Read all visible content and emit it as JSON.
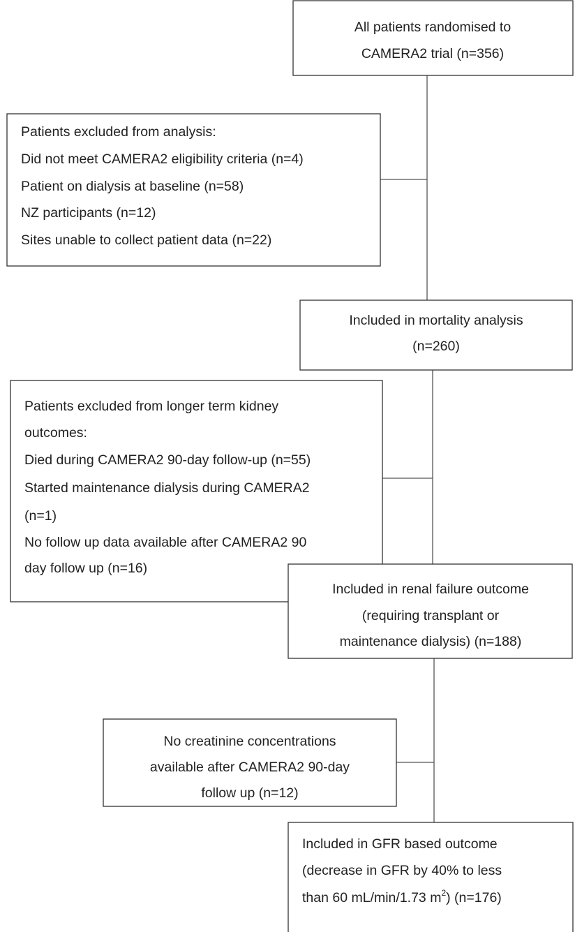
{
  "boxes": [
    {
      "lines": [
        "All patients randomised to",
        "CAMERA2 trial (n=356)"
      ]
    },
    {
      "lines": [
        "Patients excluded from analysis:",
        "Did not meet CAMERA2 eligibility criteria (n=4)",
        "Patient on dialysis at baseline (n=58)",
        "NZ participants (n=12)",
        "Sites unable to collect patient data (n=22)"
      ]
    },
    {
      "lines": [
        "Included in mortality analysis",
        "(n=260)"
      ]
    },
    {
      "lines": [
        "Patients excluded from longer term kidney",
        "outcomes:",
        "Died during CAMERA2 90-day follow-up (n=55)",
        "Started maintenance dialysis during CAMERA2",
        "(n=1)",
        "No follow up data available after CAMERA2 90",
        "day follow up (n=16)"
      ]
    },
    {
      "lines": [
        "Included in renal failure outcome",
        "(requiring transplant or",
        "maintenance dialysis) (n=188)"
      ]
    },
    {
      "lines": [
        "No creatinine concentrations",
        "available after CAMERA2 90-day",
        "follow up (n=12)"
      ]
    },
    {
      "lines": [
        "Included in GFR based outcome",
        "(decrease in GFR by 40% to less",
        {
          "text": "than 60 mL/min/1.73 m",
          "superscript": "2",
          "suffix": ") (n=176)"
        }
      ]
    }
  ]
}
